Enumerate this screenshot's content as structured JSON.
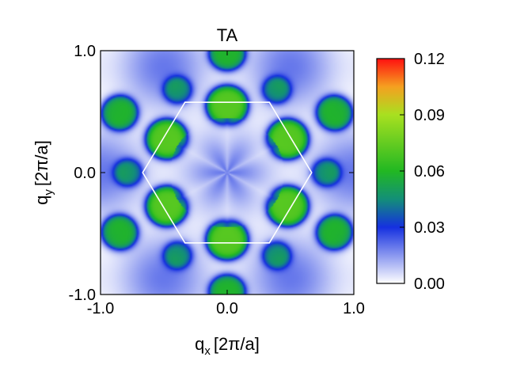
{
  "chart_data": {
    "type": "heatmap",
    "title": "TA",
    "xlabel": {
      "base": "q",
      "sub": "x",
      "unit": "[2π/a]"
    },
    "ylabel": {
      "base": "q",
      "sub": "y",
      "unit": "[2π/a]"
    },
    "xlim": [
      -1.0,
      1.0
    ],
    "ylim": [
      -1.0,
      1.0
    ],
    "x_ticks": [
      {
        "value": -1.0,
        "label": "-1.0"
      },
      {
        "value": 0.0,
        "label": "0.0"
      },
      {
        "value": 1.0,
        "label": "1.0"
      }
    ],
    "y_ticks": [
      {
        "value": -1.0,
        "label": "-1.0"
      },
      {
        "value": 0.0,
        "label": "0.0"
      },
      {
        "value": 1.0,
        "label": "1.0"
      }
    ],
    "colorbar": {
      "min": 0.0,
      "max": 0.12,
      "ticks": [
        {
          "value": 0.0,
          "label": "0.00"
        },
        {
          "value": 0.03,
          "label": "0.03"
        },
        {
          "value": 0.06,
          "label": "0.06"
        },
        {
          "value": 0.09,
          "label": "0.09"
        },
        {
          "value": 0.12,
          "label": "0.12"
        }
      ],
      "stops": [
        {
          "value": 0.0,
          "color": "#ffffff"
        },
        {
          "value": 0.03,
          "color": "#1530e0"
        },
        {
          "value": 0.045,
          "color": "#138f78"
        },
        {
          "value": 0.06,
          "color": "#22b822"
        },
        {
          "value": 0.09,
          "color": "#a8e020"
        },
        {
          "value": 0.105,
          "color": "#f5a020"
        },
        {
          "value": 0.12,
          "color": "#ff1010"
        }
      ]
    },
    "brillouin_zone": {
      "shape": "hexagon",
      "vertices": [
        [
          0.667,
          0.0
        ],
        [
          0.333,
          0.577
        ],
        [
          -0.333,
          0.577
        ],
        [
          -0.667,
          0.0
        ],
        [
          -0.333,
          -0.577
        ],
        [
          0.333,
          -0.577
        ]
      ],
      "color": "#ffffff"
    },
    "grid": false,
    "legend": "colorbar-right"
  }
}
